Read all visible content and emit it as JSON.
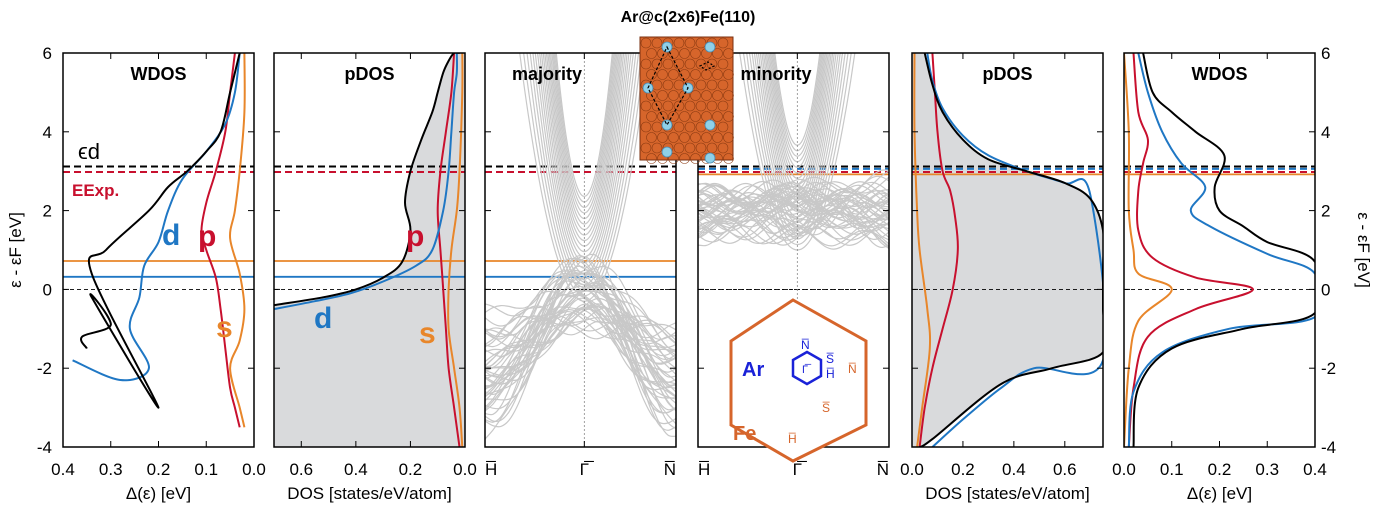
{
  "figure_title": "Ar@c(2x6)Fe(110)",
  "y_axis": {
    "label": "ε - εF [eV]",
    "ticks": [
      "6",
      "4",
      "2",
      "0",
      "-2",
      "-4"
    ]
  },
  "colors": {
    "total": "#000000",
    "d": "#1f77c4",
    "p": "#c8102e",
    "s": "#e8862a",
    "fill": "#d9dadc",
    "bands": "#c8c8c8",
    "inset_bg": "#d6652b"
  },
  "reference_lines": {
    "eps_d_label": "ϵd",
    "e_exp_label": "EExp.",
    "left_energies": {
      "eps_d": 3.12,
      "e_exp": 2.98,
      "orange_solid": 0.72,
      "blue_solid": 0.32,
      "fermi": 0
    },
    "right_energies": {
      "eps_d": 3.12,
      "blue": 3.06,
      "red": 2.98,
      "orange_solid": 2.92,
      "fermi": 0
    }
  },
  "panels": [
    {
      "key": "wdos_maj",
      "title": "WDOS",
      "xlabel": "Δ(ε) [eV]",
      "xticks": [
        "0.4",
        "0.3",
        "0.2",
        "0.1",
        "0.0"
      ]
    },
    {
      "key": "pdos_maj",
      "title": "pDOS",
      "xlabel": "DOS [states/eV/atom]",
      "xticks": [
        "0.6",
        "0.4",
        "0.2",
        "0.0"
      ]
    },
    {
      "key": "band_maj",
      "title": "majority",
      "xticks": [
        "H̅",
        "Γ̅",
        "N̅"
      ]
    },
    {
      "key": "band_min",
      "title": "minority",
      "xticks": [
        "H̅",
        "Γ̅",
        "N̅"
      ]
    },
    {
      "key": "pdos_min",
      "title": "pDOS",
      "xlabel": "DOS [states/eV/atom]",
      "xticks": [
        "0.0",
        "0.2",
        "0.4",
        "0.6"
      ]
    },
    {
      "key": "wdos_min",
      "title": "WDOS",
      "xlabel": "Δ(ε) [eV]",
      "xticks": [
        "0.0",
        "0.1",
        "0.2",
        "0.3",
        "0.4"
      ]
    }
  ],
  "orbital_labels": {
    "d": "d",
    "p": "p",
    "s": "s"
  },
  "bz_inset": {
    "labels": {
      "ar": "Ar",
      "fe": "Fe",
      "n_ar": "N̅",
      "gamma": "Γ̅",
      "s_ar": "S̅",
      "h_ar": "H̅",
      "n_fe": "N̅",
      "s_fe": "S̅",
      "h_fe": "H̅"
    }
  },
  "chart_data": {
    "type": "line",
    "title": "Ar@c(2x6)Fe(110)",
    "ylabel": "ε - εF [eV]",
    "ylim": [
      -4,
      6
    ],
    "grid": false,
    "panels": [
      {
        "name": "WDOS (majority)",
        "xlabel": "Δ(ε) [eV]",
        "xlim": [
          0.4,
          0.0
        ],
        "series": [
          {
            "name": "total",
            "x": [
              0.35,
              0.36,
              0.3,
              0.34,
              0.2,
              0.34,
              0.31,
              0.22,
              0.18,
              0.14,
              0.1,
              0.07,
              0.05,
              0.03
            ],
            "y": [
              -1.5,
              -1.2,
              -0.9,
              -0.2,
              -3.0,
              0.4,
              1.0,
              2.0,
              2.6,
              3.0,
              3.5,
              4.0,
              5.0,
              6.0
            ]
          },
          {
            "name": "d",
            "x": [
              0.38,
              0.28,
              0.22,
              0.26,
              0.24,
              0.23,
              0.2,
              0.18,
              0.15,
              0.1,
              0.06,
              0.04,
              0.03
            ],
            "y": [
              -1.8,
              -2.3,
              -2.0,
              -1.0,
              -0.2,
              0.6,
              1.2,
              2.0,
              2.8,
              3.5,
              4.2,
              5.0,
              6.0
            ]
          },
          {
            "name": "p",
            "x": [
              0.03,
              0.04,
              0.05,
              0.06,
              0.07,
              0.08,
              0.1,
              0.11,
              0.1,
              0.08,
              0.06,
              0.05,
              0.04
            ],
            "y": [
              -3.5,
              -3.0,
              -2.5,
              -1.5,
              -0.5,
              0.3,
              1.0,
              1.5,
              2.2,
              3.0,
              4.0,
              5.0,
              6.0
            ]
          },
          {
            "name": "s",
            "x": [
              0.02,
              0.03,
              0.05,
              0.03,
              0.02,
              0.03,
              0.05,
              0.04,
              0.03,
              0.02,
              0.02
            ],
            "y": [
              -3.5,
              -3.0,
              -2.0,
              -1.3,
              -0.5,
              0.4,
              1.3,
              2.0,
              3.0,
              4.5,
              6.0
            ]
          }
        ]
      },
      {
        "name": "pDOS (majority)",
        "xlabel": "DOS [states/eV/atom]",
        "xlim": [
          0.7,
          0.0
        ],
        "series": [
          {
            "name": "total",
            "x": [
              0.7,
              0.52,
              0.4,
              0.3,
              0.23,
              0.2,
              0.22,
              0.2,
              0.16,
              0.12,
              0.1,
              0.08,
              0.06,
              0.04,
              0.02
            ],
            "y": [
              -0.4,
              -0.2,
              0.0,
              0.3,
              0.7,
              1.5,
              2.2,
              3.0,
              3.8,
              4.5,
              5.0,
              5.5,
              5.8,
              6.0,
              6.0
            ]
          },
          {
            "name": "d",
            "x": [
              0.7,
              0.55,
              0.42,
              0.3,
              0.18,
              0.12,
              0.08,
              0.06,
              0.05,
              0.04,
              0.03,
              0.03
            ],
            "y": [
              -0.5,
              -0.3,
              -0.1,
              0.2,
              0.6,
              1.0,
              2.0,
              3.0,
              4.0,
              5.0,
              5.5,
              6.0
            ]
          },
          {
            "name": "p",
            "x": [
              0.02,
              0.04,
              0.06,
              0.07,
              0.08,
              0.09,
              0.1,
              0.09,
              0.07,
              0.05,
              0.04
            ],
            "y": [
              -4,
              -3,
              -2,
              -1,
              0,
              1,
              2,
              3,
              4,
              5,
              6
            ]
          },
          {
            "name": "s",
            "x": [
              0.01,
              0.02,
              0.04,
              0.06,
              0.06,
              0.05,
              0.03,
              0.02,
              0.01,
              0.01
            ],
            "y": [
              -4,
              -3,
              -2,
              -1,
              0,
              1,
              2,
              3,
              5,
              6
            ]
          }
        ]
      },
      {
        "name": "bands (majority)",
        "kpath": [
          "H̅",
          "Γ̅",
          "N̅"
        ]
      },
      {
        "name": "bands (minority)",
        "kpath": [
          "H̅",
          "Γ̅",
          "N̅"
        ]
      },
      {
        "name": "pDOS (minority)",
        "xlabel": "DOS [states/eV/atom]",
        "xlim": [
          0.0,
          0.75
        ],
        "series": [
          {
            "name": "total",
            "x": [
              0.03,
              0.08,
              0.35,
              0.55,
              0.75,
              0.75,
              0.75,
              0.75,
              0.7,
              0.6,
              0.45,
              0.3,
              0.2,
              0.12,
              0.08,
              0.05
            ],
            "y": [
              -4,
              -3.8,
              -2.4,
              -2.0,
              -1.6,
              -0.5,
              0.5,
              1.5,
              2.3,
              2.7,
              3.0,
              3.3,
              3.8,
              4.5,
              5.2,
              6.0
            ]
          },
          {
            "name": "d",
            "x": [
              0.08,
              0.2,
              0.35,
              0.48,
              0.75,
              0.7,
              0.6,
              0.45,
              0.3,
              0.2,
              0.12,
              0.08,
              0.06
            ],
            "y": [
              -4,
              -3.3,
              -2.5,
              -2.0,
              -1.8,
              2.4,
              2.7,
              3.0,
              3.4,
              3.9,
              4.6,
              5.3,
              6.0
            ]
          },
          {
            "name": "p",
            "x": [
              0.03,
              0.05,
              0.08,
              0.12,
              0.16,
              0.18,
              0.17,
              0.15,
              0.12,
              0.1,
              0.09,
              0.08
            ],
            "y": [
              -4,
              -3,
              -2,
              -1,
              0,
              1,
              1.8,
              2.5,
              3,
              4,
              5,
              6
            ]
          },
          {
            "name": "s",
            "x": [
              0.02,
              0.04,
              0.07,
              0.06,
              0.03,
              0.02,
              0.01,
              0.01
            ],
            "y": [
              -4,
              -3,
              -1.5,
              -0.5,
              1,
              2,
              4,
              6
            ]
          }
        ]
      },
      {
        "name": "WDOS (minority)",
        "xlabel": "Δ(ε) [eV]",
        "xlim": [
          0.0,
          0.4
        ],
        "series": [
          {
            "name": "total",
            "x": [
              0.02,
              0.03,
              0.1,
              0.25,
              0.4,
              0.4,
              0.3,
              0.25,
              0.2,
              0.19,
              0.21,
              0.15,
              0.1,
              0.06,
              0.04
            ],
            "y": [
              -4,
              -2.5,
              -1.5,
              -1.0,
              -0.6,
              0.7,
              1.2,
              1.6,
              2.0,
              2.6,
              3.4,
              4.0,
              4.5,
              5.0,
              6.0
            ]
          },
          {
            "name": "d",
            "x": [
              0.01,
              0.02,
              0.08,
              0.22,
              0.4,
              0.4,
              0.3,
              0.18,
              0.14,
              0.17,
              0.12,
              0.08,
              0.05,
              0.03
            ],
            "y": [
              -4,
              -2.6,
              -1.6,
              -1.0,
              -0.7,
              0.4,
              0.9,
              1.6,
              2.0,
              2.6,
              3.2,
              4.0,
              5.0,
              6.0
            ]
          },
          {
            "name": "p",
            "x": [
              0.01,
              0.02,
              0.05,
              0.15,
              0.27,
              0.15,
              0.06,
              0.03,
              0.03,
              0.04,
              0.05,
              0.03,
              0.02
            ],
            "y": [
              -4,
              -2.5,
              -1.2,
              -0.5,
              0,
              0.3,
              0.8,
              1.5,
              2.5,
              3.2,
              3.8,
              4.5,
              6.0
            ]
          },
          {
            "name": "s",
            "x": [
              0.0,
              0.01,
              0.03,
              0.1,
              0.03,
              0.02,
              0.01,
              0.01,
              0.0
            ],
            "y": [
              -4,
              -2,
              -0.8,
              0,
              0.4,
              1.0,
              2.0,
              4.0,
              6.0
            ]
          }
        ]
      }
    ]
  }
}
